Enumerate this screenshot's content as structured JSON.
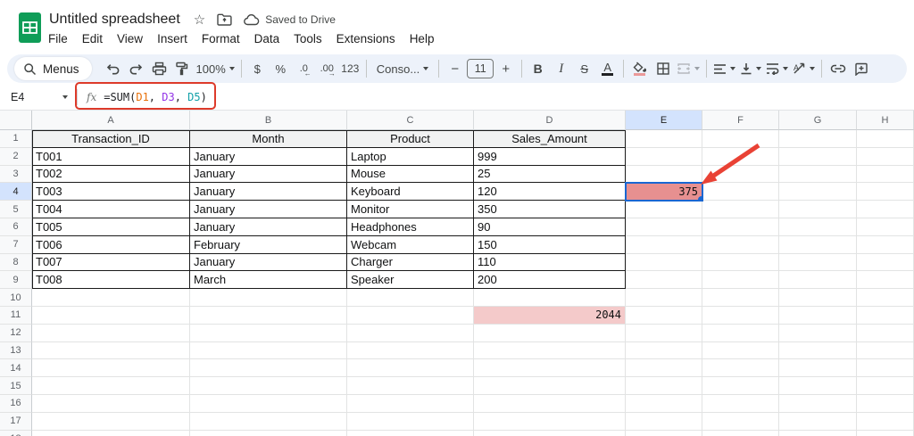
{
  "header": {
    "title": "Untitled spreadsheet",
    "saved_label": "Saved to Drive",
    "menus": [
      "File",
      "Edit",
      "View",
      "Insert",
      "Format",
      "Data",
      "Tools",
      "Extensions",
      "Help"
    ]
  },
  "toolbar": {
    "menus_label": "Menus",
    "zoom": "100%",
    "currency": "$",
    "percent": "%",
    "decrease_decimal": ".0",
    "increase_decimal": ".00",
    "more_formats": "123",
    "font": "Conso...",
    "minus": "−",
    "font_size": "11",
    "plus": "+",
    "bold": "B",
    "italic": "I",
    "strikethrough": "S",
    "text_color": "A",
    "icon_names": [
      "search-icon",
      "undo-icon",
      "redo-icon",
      "print-icon",
      "paint-format-icon",
      "fill-color-icon",
      "borders-icon",
      "merge-cells-icon",
      "horizontal-align-icon",
      "vertical-align-icon",
      "text-wrap-icon",
      "text-rotation-icon",
      "link-icon",
      "comment-icon",
      "star-icon",
      "move-folder-icon",
      "cloud-check-icon"
    ]
  },
  "formula_bar": {
    "cell_ref": "E4",
    "fx_label": "fx",
    "formula": [
      {
        "t": "=SUM(",
        "c": "#202124"
      },
      {
        "t": "D1",
        "c": "#e8710a"
      },
      {
        "t": ", ",
        "c": "#202124"
      },
      {
        "t": "D3",
        "c": "#9334e6"
      },
      {
        "t": ", ",
        "c": "#202124"
      },
      {
        "t": "D5",
        "c": "#12a0a8"
      },
      {
        "t": ")",
        "c": "#202124"
      }
    ]
  },
  "sheet": {
    "columns": [
      "A",
      "B",
      "C",
      "D",
      "E",
      "F",
      "G",
      "H"
    ],
    "num_rows": 18,
    "selected_column": "E",
    "selected_row": 4,
    "header_row": [
      "Transaction_ID",
      "Month",
      "Product",
      "Sales_Amount"
    ],
    "rows": [
      [
        "T001",
        "January",
        "Laptop",
        "999"
      ],
      [
        "T002",
        "January",
        "Mouse",
        "25"
      ],
      [
        "T003",
        "January",
        "Keyboard",
        "120"
      ],
      [
        "T004",
        "January",
        "Monitor",
        "350"
      ],
      [
        "T005",
        "January",
        "Headphones",
        "90"
      ],
      [
        "T006",
        "February",
        "Webcam",
        "150"
      ],
      [
        "T007",
        "January",
        "Charger",
        "110"
      ],
      [
        "T008",
        "March",
        "Speaker",
        "200"
      ]
    ],
    "selected_cell": {
      "ref": "E4",
      "value": "375",
      "fill": "#e79090",
      "border": "#1967d2"
    },
    "sum_cell": {
      "ref": "D11",
      "row": 11,
      "col": "D",
      "value": "2044",
      "fill": "#f4caca"
    }
  },
  "colors": {
    "toolbar_bg": "#edf2fa",
    "selection_blue": "#1967d2",
    "header_highlight": "#d3e3fd",
    "annotation_red": "#dd3a2a",
    "logo_green": "#0f9d58",
    "table_border": "#1a1a1a"
  }
}
